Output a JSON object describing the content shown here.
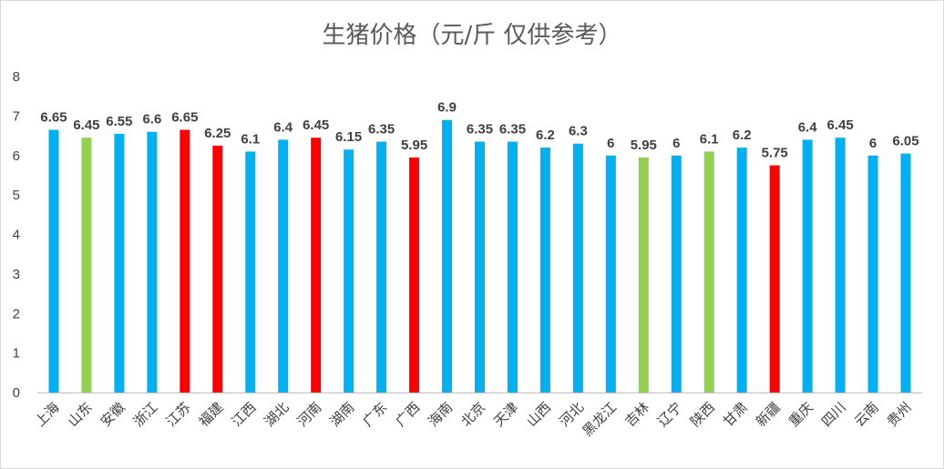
{
  "chart_data": {
    "type": "bar",
    "title": "生猪价格（元/斤 仅供参考）",
    "xlabel": "",
    "ylabel": "",
    "ylim": [
      0,
      8
    ],
    "yticks": [
      "0",
      "1",
      "2",
      "3",
      "4",
      "5",
      "6",
      "7",
      "8"
    ],
    "grid": false,
    "legend": "none",
    "categories": [
      "上海",
      "山东",
      "安徽",
      "浙江",
      "江苏",
      "福建",
      "江西",
      "湖北",
      "河南",
      "湖南",
      "广东",
      "广西",
      "海南",
      "北京",
      "天津",
      "山西",
      "河北",
      "黑龙江",
      "吉林",
      "辽宁",
      "陕西",
      "甘肃",
      "新疆",
      "重庆",
      "四川",
      "云南",
      "贵州"
    ],
    "values": [
      6.65,
      6.45,
      6.55,
      6.6,
      6.65,
      6.25,
      6.1,
      6.4,
      6.45,
      6.15,
      6.35,
      5.95,
      6.9,
      6.35,
      6.35,
      6.2,
      6.3,
      6,
      5.95,
      6,
      6.1,
      6.2,
      5.75,
      6.4,
      6.45,
      6,
      6.05
    ],
    "data_labels": [
      "6.65",
      "6.45",
      "6.55",
      "6.6",
      "6.65",
      "6.25",
      "6.1",
      "6.4",
      "6.45",
      "6.15",
      "6.35",
      "5.95",
      "6.9",
      "6.35",
      "6.35",
      "6.2",
      "6.3",
      "6",
      "5.95",
      "6",
      "6.1",
      "6.2",
      "5.75",
      "6.4",
      "6.45",
      "6",
      "6.05"
    ],
    "bar_colors": [
      "#00b0f0",
      "#92d050",
      "#00b0f0",
      "#00b0f0",
      "#ff0000",
      "#ff0000",
      "#00b0f0",
      "#00b0f0",
      "#ff0000",
      "#00b0f0",
      "#00b0f0",
      "#ff0000",
      "#00b0f0",
      "#00b0f0",
      "#00b0f0",
      "#00b0f0",
      "#00b0f0",
      "#00b0f0",
      "#92d050",
      "#00b0f0",
      "#92d050",
      "#00b0f0",
      "#ff0000",
      "#00b0f0",
      "#00b0f0",
      "#00b0f0",
      "#00b0f0"
    ]
  }
}
